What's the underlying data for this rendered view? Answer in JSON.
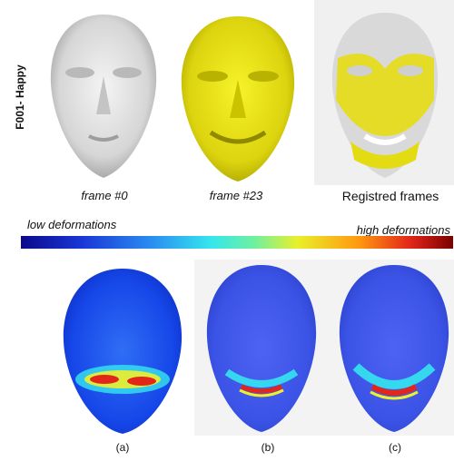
{
  "row_label": "F001- Happy",
  "top_captions": [
    "frame #0",
    "frame #23",
    "Registred frames"
  ],
  "colorbar": {
    "low_label": "low deformations",
    "high_label": "high deformations"
  },
  "bottom_captions": [
    "(a)",
    "(b)",
    "(c)"
  ]
}
